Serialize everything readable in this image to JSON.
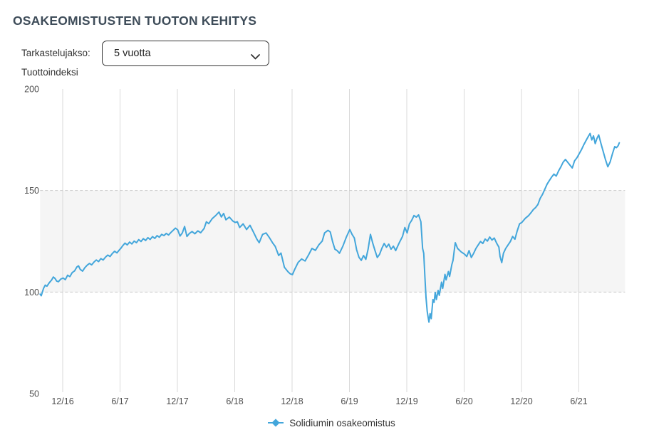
{
  "header": {
    "title": "OSAKEOMISTUSTEN TUOTON KEHITYS"
  },
  "controls": {
    "period_label": "Tarkastelujakso:",
    "period_value": "5 vuotta",
    "index_label": "Tuottoindeksi"
  },
  "colors": {
    "title": "#3e4c59",
    "text": "#333333",
    "tick": "#4f4f4f",
    "grid": "#d9d9d9",
    "dashed": "#c9c9c9",
    "band": "#f5f5f5",
    "line": "#43a6db"
  },
  "chart_data": {
    "type": "line",
    "title": "",
    "xlabel": "",
    "ylabel": "Tuottoindeksi",
    "ylim": [
      50,
      200
    ],
    "y_ticks": [
      200,
      150,
      100,
      50
    ],
    "xlim": [
      2016.72,
      2021.82
    ],
    "x_ticks": [
      {
        "label": "12/16",
        "t": 2016.917
      },
      {
        "label": "6/17",
        "t": 2017.417
      },
      {
        "label": "12/17",
        "t": 2017.917
      },
      {
        "label": "6/18",
        "t": 2018.417
      },
      {
        "label": "12/18",
        "t": 2018.917
      },
      {
        "label": "6/19",
        "t": 2019.417
      },
      {
        "label": "12/19",
        "t": 2019.917
      },
      {
        "label": "6/20",
        "t": 2020.417
      },
      {
        "label": "12/20",
        "t": 2020.917
      },
      {
        "label": "6/21",
        "t": 2021.417
      }
    ],
    "grid": "vertical solid lines at half-year ticks; dashed horizontal lines at 100 and 150",
    "reference_band": {
      "from": 100,
      "to": 150
    },
    "legend": {
      "position": "bottom-center",
      "entries": [
        "Solidiumin osakeomistus"
      ]
    },
    "series": [
      {
        "name": "Solidiumin osakeomistus",
        "color": "#43a6db",
        "marker": "diamond",
        "points": [
          [
            2016.72,
            99.0
          ],
          [
            2016.73,
            98.2
          ],
          [
            2016.75,
            101.8
          ],
          [
            2016.765,
            103.4
          ],
          [
            2016.78,
            102.9
          ],
          [
            2016.8,
            104.6
          ],
          [
            2016.82,
            105.9
          ],
          [
            2016.835,
            107.4
          ],
          [
            2016.85,
            106.7
          ],
          [
            2016.865,
            105.4
          ],
          [
            2016.88,
            105.1
          ],
          [
            2016.9,
            106.4
          ],
          [
            2016.92,
            106.9
          ],
          [
            2016.94,
            106.1
          ],
          [
            2016.96,
            108.3
          ],
          [
            2016.98,
            107.6
          ],
          [
            2017.0,
            109.6
          ],
          [
            2017.02,
            110.4
          ],
          [
            2017.04,
            112.3
          ],
          [
            2017.055,
            112.9
          ],
          [
            2017.07,
            111.2
          ],
          [
            2017.09,
            110.3
          ],
          [
            2017.11,
            112.0
          ],
          [
            2017.13,
            113.2
          ],
          [
            2017.15,
            114.1
          ],
          [
            2017.17,
            113.4
          ],
          [
            2017.19,
            114.8
          ],
          [
            2017.21,
            115.8
          ],
          [
            2017.23,
            115.0
          ],
          [
            2017.25,
            116.5
          ],
          [
            2017.27,
            115.8
          ],
          [
            2017.29,
            117.2
          ],
          [
            2017.31,
            118.2
          ],
          [
            2017.33,
            117.5
          ],
          [
            2017.35,
            119.0
          ],
          [
            2017.37,
            120.1
          ],
          [
            2017.39,
            119.3
          ],
          [
            2017.41,
            120.7
          ],
          [
            2017.425,
            121.6
          ],
          [
            2017.44,
            122.8
          ],
          [
            2017.46,
            124.1
          ],
          [
            2017.48,
            123.2
          ],
          [
            2017.5,
            124.6
          ],
          [
            2017.52,
            123.7
          ],
          [
            2017.54,
            125.1
          ],
          [
            2017.56,
            124.3
          ],
          [
            2017.58,
            125.8
          ],
          [
            2017.6,
            124.9
          ],
          [
            2017.62,
            126.3
          ],
          [
            2017.64,
            125.4
          ],
          [
            2017.66,
            126.8
          ],
          [
            2017.68,
            125.9
          ],
          [
            2017.7,
            127.3
          ],
          [
            2017.72,
            126.4
          ],
          [
            2017.74,
            127.8
          ],
          [
            2017.76,
            127.0
          ],
          [
            2017.78,
            128.4
          ],
          [
            2017.8,
            127.8
          ],
          [
            2017.82,
            128.9
          ],
          [
            2017.84,
            128.1
          ],
          [
            2017.86,
            129.3
          ],
          [
            2017.88,
            130.4
          ],
          [
            2017.9,
            131.5
          ],
          [
            2017.92,
            130.6
          ],
          [
            2017.94,
            127.6
          ],
          [
            2017.96,
            129.1
          ],
          [
            2017.98,
            132.3
          ],
          [
            2018.0,
            127.4
          ],
          [
            2018.02,
            128.8
          ],
          [
            2018.045,
            129.8
          ],
          [
            2018.07,
            128.7
          ],
          [
            2018.095,
            130.1
          ],
          [
            2018.12,
            129.2
          ],
          [
            2018.15,
            131.3
          ],
          [
            2018.17,
            134.6
          ],
          [
            2018.19,
            133.7
          ],
          [
            2018.22,
            136.1
          ],
          [
            2018.25,
            137.6
          ],
          [
            2018.28,
            139.4
          ],
          [
            2018.3,
            137.0
          ],
          [
            2018.32,
            138.7
          ],
          [
            2018.34,
            135.6
          ],
          [
            2018.37,
            136.9
          ],
          [
            2018.4,
            135.0
          ],
          [
            2018.42,
            134.3
          ],
          [
            2018.44,
            134.6
          ],
          [
            2018.46,
            131.8
          ],
          [
            2018.49,
            133.6
          ],
          [
            2018.52,
            130.8
          ],
          [
            2018.55,
            132.9
          ],
          [
            2018.58,
            129.6
          ],
          [
            2018.61,
            126.0
          ],
          [
            2018.63,
            124.3
          ],
          [
            2018.66,
            128.4
          ],
          [
            2018.69,
            129.1
          ],
          [
            2018.72,
            126.7
          ],
          [
            2018.75,
            124.0
          ],
          [
            2018.77,
            122.5
          ],
          [
            2018.8,
            118.0
          ],
          [
            2018.82,
            119.2
          ],
          [
            2018.85,
            112.2
          ],
          [
            2018.88,
            110.1
          ],
          [
            2018.9,
            109.0
          ],
          [
            2018.92,
            108.6
          ],
          [
            2018.94,
            111.2
          ],
          [
            2018.97,
            114.6
          ],
          [
            2019.0,
            116.3
          ],
          [
            2019.03,
            115.3
          ],
          [
            2019.06,
            118.2
          ],
          [
            2019.09,
            121.5
          ],
          [
            2019.12,
            120.5
          ],
          [
            2019.15,
            123.2
          ],
          [
            2019.18,
            125.1
          ],
          [
            2019.2,
            129.1
          ],
          [
            2019.23,
            130.4
          ],
          [
            2019.25,
            129.6
          ],
          [
            2019.27,
            124.9
          ],
          [
            2019.29,
            121.1
          ],
          [
            2019.31,
            120.4
          ],
          [
            2019.33,
            119.1
          ],
          [
            2019.36,
            122.6
          ],
          [
            2019.39,
            127.1
          ],
          [
            2019.42,
            130.8
          ],
          [
            2019.44,
            128.4
          ],
          [
            2019.46,
            126.6
          ],
          [
            2019.48,
            120.8
          ],
          [
            2019.5,
            117.1
          ],
          [
            2019.52,
            115.6
          ],
          [
            2019.54,
            118.0
          ],
          [
            2019.56,
            116.1
          ],
          [
            2019.58,
            121.1
          ],
          [
            2019.6,
            128.4
          ],
          [
            2019.62,
            124.1
          ],
          [
            2019.64,
            120.4
          ],
          [
            2019.66,
            117.0
          ],
          [
            2019.68,
            118.6
          ],
          [
            2019.7,
            121.6
          ],
          [
            2019.72,
            123.9
          ],
          [
            2019.74,
            122.1
          ],
          [
            2019.76,
            123.6
          ],
          [
            2019.78,
            121.1
          ],
          [
            2019.8,
            122.6
          ],
          [
            2019.82,
            120.4
          ],
          [
            2019.85,
            124.1
          ],
          [
            2019.88,
            127.4
          ],
          [
            2019.9,
            131.8
          ],
          [
            2019.92,
            129.1
          ],
          [
            2019.94,
            133.6
          ],
          [
            2019.96,
            135.3
          ],
          [
            2019.98,
            137.7
          ],
          [
            2020.0,
            136.9
          ],
          [
            2020.02,
            138.0
          ],
          [
            2020.04,
            134.6
          ],
          [
            2020.055,
            121.5
          ],
          [
            2020.065,
            119.1
          ],
          [
            2020.075,
            107.7
          ],
          [
            2020.085,
            97.3
          ],
          [
            2020.095,
            90.4
          ],
          [
            2020.11,
            85.2
          ],
          [
            2020.12,
            89.4
          ],
          [
            2020.13,
            86.9
          ],
          [
            2020.145,
            96.3
          ],
          [
            2020.155,
            94.9
          ],
          [
            2020.165,
            99.8
          ],
          [
            2020.175,
            96.3
          ],
          [
            2020.19,
            100.8
          ],
          [
            2020.2,
            98.4
          ],
          [
            2020.22,
            104.9
          ],
          [
            2020.23,
            101.8
          ],
          [
            2020.25,
            108.7
          ],
          [
            2020.26,
            106.0
          ],
          [
            2020.28,
            110.1
          ],
          [
            2020.29,
            107.7
          ],
          [
            2020.31,
            113.6
          ],
          [
            2020.32,
            115.6
          ],
          [
            2020.33,
            120.1
          ],
          [
            2020.34,
            124.3
          ],
          [
            2020.36,
            121.5
          ],
          [
            2020.39,
            119.8
          ],
          [
            2020.42,
            118.7
          ],
          [
            2020.44,
            117.5
          ],
          [
            2020.46,
            120.4
          ],
          [
            2020.48,
            117.0
          ],
          [
            2020.5,
            119.1
          ],
          [
            2020.52,
            121.5
          ],
          [
            2020.54,
            123.2
          ],
          [
            2020.56,
            124.9
          ],
          [
            2020.58,
            123.9
          ],
          [
            2020.6,
            126.1
          ],
          [
            2020.62,
            125.1
          ],
          [
            2020.64,
            127.1
          ],
          [
            2020.66,
            125.6
          ],
          [
            2020.68,
            126.6
          ],
          [
            2020.7,
            124.1
          ],
          [
            2020.72,
            122.1
          ],
          [
            2020.73,
            117.5
          ],
          [
            2020.745,
            114.5
          ],
          [
            2020.76,
            119.1
          ],
          [
            2020.78,
            121.5
          ],
          [
            2020.8,
            123.2
          ],
          [
            2020.82,
            124.9
          ],
          [
            2020.84,
            127.4
          ],
          [
            2020.86,
            126.0
          ],
          [
            2020.88,
            130.1
          ],
          [
            2020.9,
            133.6
          ],
          [
            2020.92,
            134.3
          ],
          [
            2020.95,
            136.3
          ],
          [
            2020.98,
            137.7
          ],
          [
            2021.0,
            139.1
          ],
          [
            2021.02,
            140.6
          ],
          [
            2021.04,
            141.6
          ],
          [
            2021.06,
            143.1
          ],
          [
            2021.08,
            146.1
          ],
          [
            2021.1,
            148.1
          ],
          [
            2021.12,
            150.6
          ],
          [
            2021.14,
            153.1
          ],
          [
            2021.16,
            154.9
          ],
          [
            2021.18,
            156.6
          ],
          [
            2021.2,
            158.1
          ],
          [
            2021.22,
            157.1
          ],
          [
            2021.24,
            159.6
          ],
          [
            2021.26,
            161.6
          ],
          [
            2021.28,
            163.9
          ],
          [
            2021.3,
            165.3
          ],
          [
            2021.32,
            163.9
          ],
          [
            2021.34,
            162.5
          ],
          [
            2021.36,
            161.1
          ],
          [
            2021.38,
            164.6
          ],
          [
            2021.4,
            166.1
          ],
          [
            2021.42,
            168.1
          ],
          [
            2021.44,
            170.1
          ],
          [
            2021.46,
            172.5
          ],
          [
            2021.48,
            174.6
          ],
          [
            2021.5,
            176.7
          ],
          [
            2021.515,
            178.1
          ],
          [
            2021.53,
            174.9
          ],
          [
            2021.545,
            176.9
          ],
          [
            2021.56,
            173.1
          ],
          [
            2021.575,
            175.6
          ],
          [
            2021.59,
            177.4
          ],
          [
            2021.61,
            173.1
          ],
          [
            2021.63,
            169.1
          ],
          [
            2021.65,
            165.1
          ],
          [
            2021.67,
            161.7
          ],
          [
            2021.69,
            164.1
          ],
          [
            2021.71,
            168.1
          ],
          [
            2021.73,
            171.6
          ],
          [
            2021.745,
            171.1
          ],
          [
            2021.76,
            172.1
          ],
          [
            2021.77,
            173.5
          ]
        ]
      }
    ]
  }
}
